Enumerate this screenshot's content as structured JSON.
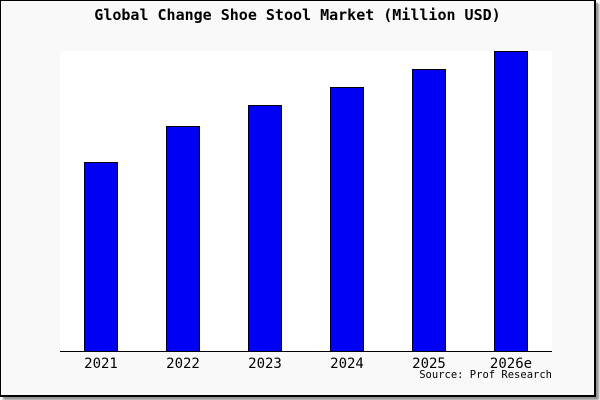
{
  "chart_data": {
    "type": "bar",
    "title": "Global Change Shoe Stool Market (Million USD)",
    "categories": [
      "2021",
      "2022",
      "2023",
      "2024",
      "2025",
      "2026e"
    ],
    "values": [
      63,
      75,
      82,
      88,
      94,
      100
    ],
    "xlabel": "",
    "ylabel": "",
    "ylim": [
      0,
      100
    ],
    "y_axis_shown": false,
    "grid": false,
    "legend": false,
    "note": "values are relative units estimated from bar heights; no y-axis tick labels are shown in the image"
  },
  "source_note": "Source: Prof Research",
  "colors": {
    "bar_fill": "#0000f5",
    "bar_border": "#000000",
    "plot_bg": "#ffffff",
    "canvas_bg": "#f9f9f9",
    "frame_border": "#000000",
    "text": "#000000"
  }
}
